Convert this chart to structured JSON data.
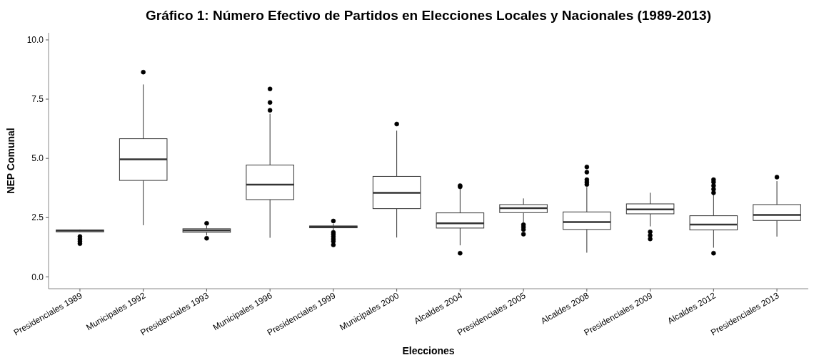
{
  "chart_data": {
    "type": "box",
    "title": "Gráfico 1: Número Efectivo de Partidos en Elecciones Locales y Nacionales (1989-2013)",
    "xlabel": "Elecciones",
    "ylabel": "NEP Comunal",
    "categories": [
      "Presidenciales 1989",
      "Municipales 1992",
      "Presidenciales 1993",
      "Municipales 1996",
      "Presidenciales 1999",
      "Municipales 2000",
      "Alcaldes 2004",
      "Presidenciales 2005",
      "Alcaldes 2008",
      "Presidenciales 2009",
      "Alcaldes 2012",
      "Presidenciales 2013"
    ],
    "boxes": [
      {
        "low": 1.88,
        "q1": 1.9,
        "median": 1.95,
        "q3": 1.98,
        "high": 2.0,
        "outliers": [
          1.4,
          1.5,
          1.6,
          1.7
        ]
      },
      {
        "low": 2.18,
        "q1": 4.07,
        "median": 4.96,
        "q3": 5.83,
        "high": 8.12,
        "outliers": [
          8.64
        ]
      },
      {
        "low": 1.75,
        "q1": 1.88,
        "median": 1.96,
        "q3": 2.03,
        "high": 2.15,
        "outliers": [
          1.63,
          2.26
        ]
      },
      {
        "low": 1.65,
        "q1": 3.26,
        "median": 3.89,
        "q3": 4.72,
        "high": 6.88,
        "outliers": [
          7.03,
          7.36,
          7.93
        ]
      },
      {
        "low": 1.95,
        "q1": 2.07,
        "median": 2.11,
        "q3": 2.15,
        "high": 2.25,
        "outliers": [
          1.35,
          1.5,
          1.6,
          1.7,
          1.8,
          1.88,
          2.36
        ]
      },
      {
        "low": 1.66,
        "q1": 2.88,
        "median": 3.55,
        "q3": 4.24,
        "high": 6.17,
        "outliers": [
          6.45
        ]
      },
      {
        "low": 1.33,
        "q1": 2.06,
        "median": 2.26,
        "q3": 2.7,
        "high": 3.75,
        "outliers": [
          1.0,
          3.8,
          3.85
        ]
      },
      {
        "low": 2.28,
        "q1": 2.71,
        "median": 2.9,
        "q3": 3.05,
        "high": 3.31,
        "outliers": [
          1.8,
          2.0,
          2.1,
          2.2
        ]
      },
      {
        "low": 1.02,
        "q1": 2.0,
        "median": 2.31,
        "q3": 2.74,
        "high": 3.79,
        "outliers": [
          3.9,
          4.0,
          4.1,
          4.42,
          4.64
        ]
      },
      {
        "low": 2.13,
        "q1": 2.66,
        "median": 2.85,
        "q3": 3.08,
        "high": 3.55,
        "outliers": [
          1.6,
          1.75,
          1.9
        ]
      },
      {
        "low": 1.23,
        "q1": 1.98,
        "median": 2.21,
        "q3": 2.58,
        "high": 3.48,
        "outliers": [
          1.0,
          3.55,
          3.7,
          3.85,
          4.0,
          4.1
        ]
      },
      {
        "low": 1.7,
        "q1": 2.38,
        "median": 2.61,
        "q3": 3.05,
        "high": 4.04,
        "outliers": [
          4.21
        ]
      }
    ],
    "ylim": [
      -0.5,
      10.3
    ],
    "yticks": [
      {
        "value": 0,
        "label": "0.0"
      },
      {
        "value": 2.5,
        "label": "2.5"
      },
      {
        "value": 5,
        "label": "5.0"
      },
      {
        "value": 7.5,
        "label": "7.5"
      },
      {
        "value": 10,
        "label": "10.0"
      }
    ],
    "grid": false
  }
}
